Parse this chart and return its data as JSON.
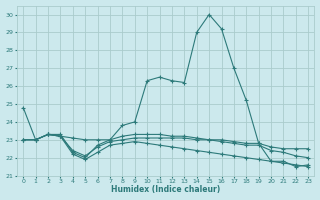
{
  "xlabel": "Humidex (Indice chaleur)",
  "bg_color": "#cce9ed",
  "grid_color": "#aacccc",
  "line_color": "#2d7a7a",
  "xlim": [
    -0.5,
    23.5
  ],
  "ylim": [
    21,
    30.5
  ],
  "yticks": [
    21,
    22,
    23,
    24,
    25,
    26,
    27,
    28,
    29,
    30
  ],
  "xticks": [
    0,
    1,
    2,
    3,
    4,
    5,
    6,
    7,
    8,
    9,
    10,
    11,
    12,
    13,
    14,
    15,
    16,
    17,
    18,
    19,
    20,
    21,
    22,
    23
  ],
  "series": [
    [
      24.8,
      23.0,
      23.3,
      23.3,
      22.3,
      22.0,
      22.7,
      23.0,
      23.8,
      24.0,
      26.3,
      26.5,
      26.3,
      26.2,
      29.0,
      30.0,
      29.2,
      27.0,
      25.2,
      22.8,
      21.8,
      21.8,
      21.5,
      21.6
    ],
    [
      23.0,
      23.0,
      23.3,
      23.2,
      23.1,
      23.0,
      23.0,
      23.0,
      23.2,
      23.3,
      23.3,
      23.3,
      23.2,
      23.2,
      23.1,
      23.0,
      23.0,
      22.9,
      22.8,
      22.8,
      22.6,
      22.5,
      22.5,
      22.5
    ],
    [
      23.0,
      23.0,
      23.3,
      23.2,
      22.4,
      22.1,
      22.6,
      22.9,
      23.0,
      23.1,
      23.1,
      23.1,
      23.1,
      23.1,
      23.0,
      23.0,
      22.9,
      22.8,
      22.7,
      22.7,
      22.4,
      22.3,
      22.1,
      22.0
    ],
    [
      23.0,
      23.0,
      23.3,
      23.2,
      22.2,
      21.9,
      22.3,
      22.7,
      22.8,
      22.9,
      22.8,
      22.7,
      22.6,
      22.5,
      22.4,
      22.3,
      22.2,
      22.1,
      22.0,
      21.9,
      21.8,
      21.7,
      21.6,
      21.5
    ]
  ]
}
